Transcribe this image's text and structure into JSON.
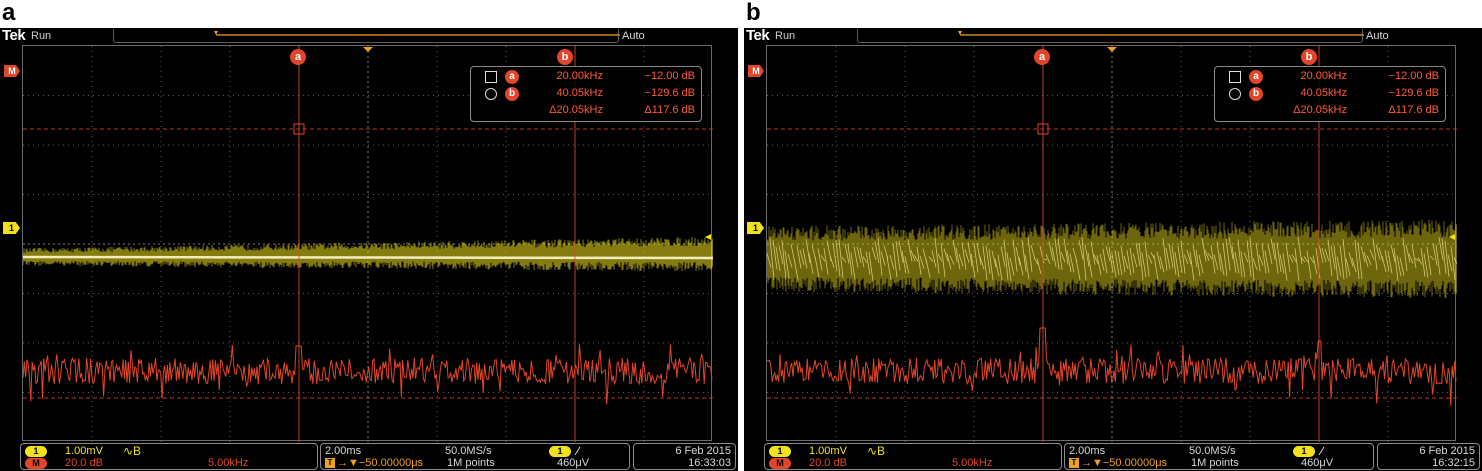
{
  "panels": [
    {
      "letter": "a",
      "brand": "Tek",
      "run_state": "Run",
      "trigger_mode": "Auto",
      "ch1_marker": "1",
      "math_marker": "M",
      "cursor_a_label": "a",
      "cursor_b_label": "b",
      "measurements": {
        "row_a": {
          "cursor": "a",
          "freq": "20.00kHz",
          "value": "−12.00 dB"
        },
        "row_b": {
          "cursor": "b",
          "freq": "40.05kHz",
          "value": "−129.6 dB"
        },
        "row_delta": {
          "freq": "Δ20.05kHz",
          "value": "Δ117.6 dB"
        }
      },
      "bottom": {
        "ch1_badge": "1",
        "ch1_scale": "1.00mV",
        "ch1_bw_icon": "∿B ",
        "math_badge": "M",
        "math_scale": "20.0 dB",
        "math_span": "5.00kHz",
        "timebase": "2.00ms",
        "sample_rate": "50.0MS/s",
        "trigger_delay": "→▼−50.00000μs",
        "record_length": "1M points",
        "trig_badge": "1",
        "trig_slope": "∕",
        "trig_level": "460μV",
        "date": "6 Feb  2015",
        "time": "16:33:03"
      },
      "trace_style": "narrow"
    },
    {
      "letter": "b",
      "brand": "Tek",
      "run_state": "Run",
      "trigger_mode": "Auto",
      "ch1_marker": "1",
      "math_marker": "M",
      "cursor_a_label": "a",
      "cursor_b_label": "b",
      "measurements": {
        "row_a": {
          "cursor": "a",
          "freq": "20.00kHz",
          "value": "−12.00 dB"
        },
        "row_b": {
          "cursor": "b",
          "freq": "40.05kHz",
          "value": "−129.6 dB"
        },
        "row_delta": {
          "freq": "Δ20.05kHz",
          "value": "Δ117.6 dB"
        }
      },
      "bottom": {
        "ch1_badge": "1",
        "ch1_scale": "1.00mV",
        "ch1_bw_icon": "∿B ",
        "math_badge": "M",
        "math_scale": "20.0 dB",
        "math_span": "5.00kHz",
        "timebase": "2.00ms",
        "sample_rate": "50.0MS/s",
        "trigger_delay": "→▼−50.00000μs",
        "record_length": "1M points",
        "trig_badge": "1",
        "trig_slope": "∕",
        "trig_level": "460μV",
        "date": "6 Feb  2015",
        "time": "16:32:15"
      },
      "trace_style": "wide"
    }
  ],
  "colors": {
    "channel1": "#f2e21c",
    "math": "#e2452a",
    "trigger": "#f0a020",
    "grid": "#5c5c5c"
  }
}
